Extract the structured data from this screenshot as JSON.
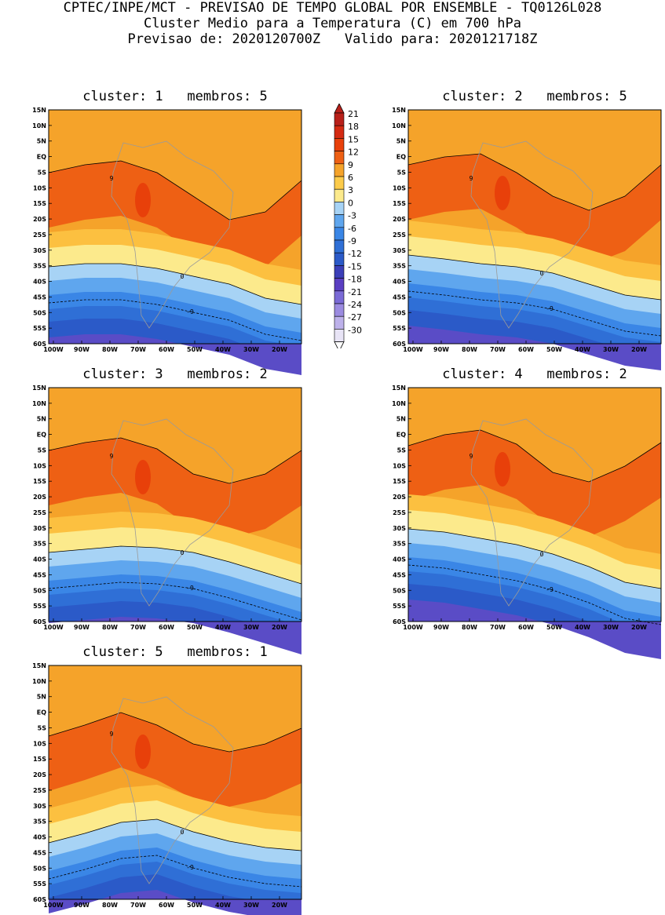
{
  "header": {
    "line1": "CPTEC/INPE/MCT - PREVISAO DE TEMPO GLOBAL POR ENSEMBLE - TQ0126L028",
    "line2": "Cluster Medio para a Temperatura (C) em 700 hPa",
    "line3": "Previsao de: 2020120700Z   Valido para: 2020121718Z"
  },
  "axes": {
    "lat_labels": [
      "15N",
      "10N",
      "5N",
      "EQ",
      "5S",
      "10S",
      "15S",
      "20S",
      "25S",
      "30S",
      "35S",
      "40S",
      "45S",
      "50S",
      "55S",
      "60S"
    ],
    "lon_labels": [
      "100W",
      "90W",
      "80W",
      "70W",
      "60W",
      "50W",
      "40W",
      "30W",
      "20W"
    ]
  },
  "colorbar": {
    "labels": [
      "21",
      "18",
      "15",
      "12",
      "9",
      "6",
      "3",
      "0",
      "-3",
      "-6",
      "-9",
      "-12",
      "-15",
      "-18",
      "-21",
      "-24",
      "-27",
      "-30"
    ],
    "colors": [
      "#b8201a",
      "#d42a12",
      "#e8400a",
      "#ee6014",
      "#f5a32a",
      "#fccb4a",
      "#fcea8c",
      "#a7d3f5",
      "#5fa6ee",
      "#3a86e6",
      "#2f6fd6",
      "#2b5ac8",
      "#3b3fb8",
      "#5a3fc2",
      "#7a6ad6",
      "#9b8be0",
      "#bdb1ea",
      "#e8e4f6"
    ]
  },
  "contour_labels": {
    "nine": "9",
    "zero": "0",
    "minus_nine": "-9"
  },
  "clusters": [
    {
      "title": "cluster: 1   membros: 5"
    },
    {
      "title": "cluster: 2   membros: 5"
    },
    {
      "title": "cluster: 3   membros: 2"
    },
    {
      "title": "cluster: 4   membros: 2"
    },
    {
      "title": "cluster: 5   membros: 1"
    }
  ]
}
